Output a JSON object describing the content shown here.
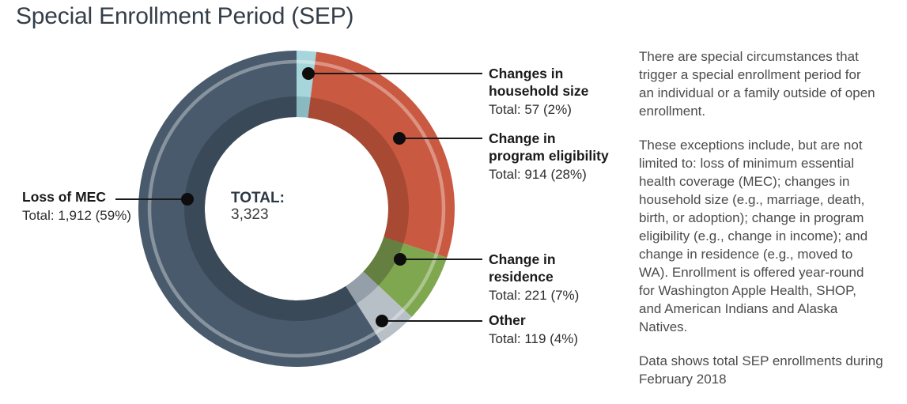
{
  "title": "Special Enrollment Period (SEP)",
  "chart_data": {
    "type": "pie",
    "subtype": "donut",
    "title": "Special Enrollment Period (SEP)",
    "center_label": "TOTAL:",
    "center_value": "3,323",
    "total": 3323,
    "start_angle_deg": 0,
    "direction": "clockwise",
    "segments": [
      {
        "label": "Changes in household size",
        "value": 57,
        "pct": 2,
        "color": "#a6d5dc",
        "shadow_color": "#8bb9c1"
      },
      {
        "label": "Change in program eligibility",
        "value": 914,
        "pct": 28,
        "color": "#ca5941",
        "shadow_color": "#a74933"
      },
      {
        "label": "Change in residence",
        "value": 221,
        "pct": 7,
        "color": "#7fa750",
        "shadow_color": "#647f3f"
      },
      {
        "label": "Other",
        "value": 119,
        "pct": 4,
        "color": "#b7bfc7",
        "shadow_color": "#959fa9"
      },
      {
        "label": "Loss of MEC",
        "value": 1912,
        "pct": 59,
        "color": "#485a6b",
        "shadow_color": "#3a4957"
      }
    ],
    "highlight_ring_color": "rgba(255,255,255,0.35)"
  },
  "callouts": {
    "household": {
      "name": "Changes in\nhousehold size",
      "total": "Total: 57 (2%)"
    },
    "eligibility": {
      "name": "Change in\nprogram eligibility",
      "total": "Total: 914 (28%)"
    },
    "residence": {
      "name": "Change in\nresidence",
      "total": "Total: 221 (7%)"
    },
    "other": {
      "name": "Other",
      "total": "Total: 119 (4%)"
    },
    "mec": {
      "name": "Loss of MEC",
      "total": "Total: 1,912 (59%)"
    }
  },
  "side_text": {
    "p1": "There are special circumstances that\ntrigger a special enrollment period for\nan individual or a family outside of open\nenrollment.",
    "p2": "These exceptions include, but are not\nlimited to: loss of minimum essential\nhealth coverage (MEC); changes in\nhousehold size (e.g., marriage, death,\nbirth, or adoption); change in program\neligibility (e.g., change in income); and\nchange in residence (e.g., moved to\nWA). Enrollment is offered year-round\nfor Washington Apple Health, SHOP,\nand American Indians and Alaska\nNatives.",
    "p3": "Data shows total SEP enrollments during\nFebruary 2018"
  }
}
